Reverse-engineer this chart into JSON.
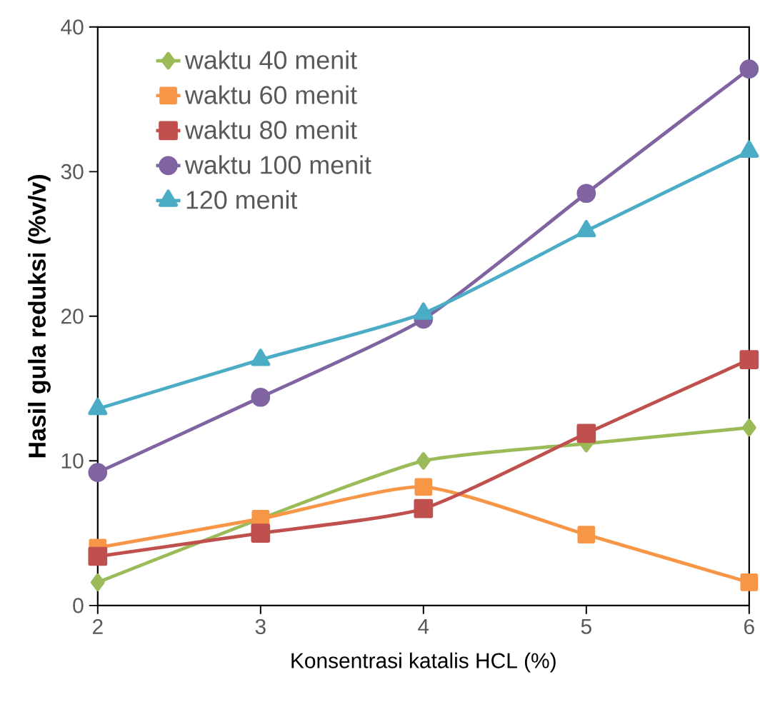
{
  "chart_data": {
    "type": "line",
    "xlabel": "Konsentrasi katalis HCL (%)",
    "ylabel": "Hasil gula reduksi (%v/v)",
    "x": [
      2,
      3,
      4,
      5,
      6
    ],
    "xlim": [
      2,
      6
    ],
    "xticks": [
      2,
      3,
      4,
      5,
      6
    ],
    "ylim": [
      0,
      40
    ],
    "yticks": [
      0,
      10,
      20,
      30,
      40
    ],
    "legend": "top left",
    "grid": false,
    "line_style": "solid",
    "series": [
      {
        "name": "waktu 40 menit",
        "color": "#9bbb59",
        "marker": "diamond",
        "values": [
          1.6,
          6.0,
          10.0,
          11.2,
          12.3
        ]
      },
      {
        "name": "waktu 60 menit",
        "color": "#f79646",
        "marker": "square",
        "values": [
          4.0,
          6.0,
          8.2,
          4.9,
          1.6
        ]
      },
      {
        "name": "waktu 80 menit",
        "color": "#c0504d",
        "marker": "square",
        "values": [
          3.4,
          5.0,
          6.7,
          11.9,
          17.0
        ]
      },
      {
        "name": "waktu 100 menit",
        "color": "#8064a2",
        "marker": "circle",
        "values": [
          9.2,
          14.4,
          19.8,
          28.5,
          37.1
        ]
      },
      {
        "name": "120 menit",
        "color": "#4bacc6",
        "marker": "triangle",
        "values": [
          13.6,
          17.0,
          20.2,
          25.9,
          31.4
        ]
      }
    ]
  }
}
